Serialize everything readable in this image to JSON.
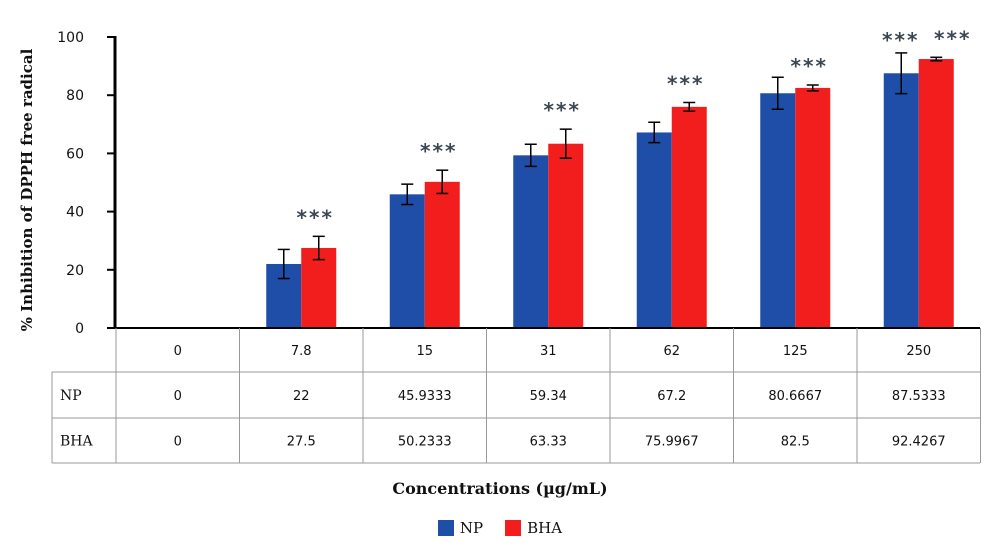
{
  "chart_data": {
    "type": "bar",
    "ylabel": "% Inhibition of DPPH free radical",
    "xlabel": "Concentrations (µg/mL)",
    "ylim": [
      0,
      100
    ],
    "yticks": [
      0,
      20,
      40,
      60,
      80,
      100
    ],
    "categories": [
      "0",
      "7.8",
      "15",
      "31",
      "62",
      "125",
      "250"
    ],
    "series": [
      {
        "name": "NP",
        "color": "#1f4ea8",
        "values": [
          0,
          22,
          45.9333,
          59.34,
          67.2,
          80.6667,
          87.5333
        ],
        "errors": [
          0,
          5,
          3.5,
          3.8,
          3.5,
          5.5,
          7
        ]
      },
      {
        "name": "BHA",
        "color": "#f21d1d",
        "values": [
          0,
          27.5,
          50.2333,
          63.33,
          75.9967,
          82.5,
          92.4267
        ],
        "errors": [
          0,
          4,
          4,
          5,
          1.5,
          1,
          0.6
        ]
      }
    ],
    "table": {
      "rows": [
        {
          "label": "NP",
          "values": [
            "0",
            "22",
            "45.9333",
            "59.34",
            "67.2",
            "80.6667",
            "87.5333"
          ]
        },
        {
          "label": "BHA",
          "values": [
            "0",
            "27.5",
            "50.2333",
            "63.33",
            "75.9967",
            "82.5",
            "92.4267"
          ]
        }
      ]
    },
    "annotations": {
      "significance": "***",
      "on_categories": [
        "7.8",
        "15",
        "31",
        "62",
        "125",
        "250"
      ]
    },
    "legend": "bottom-center",
    "grid": false
  }
}
